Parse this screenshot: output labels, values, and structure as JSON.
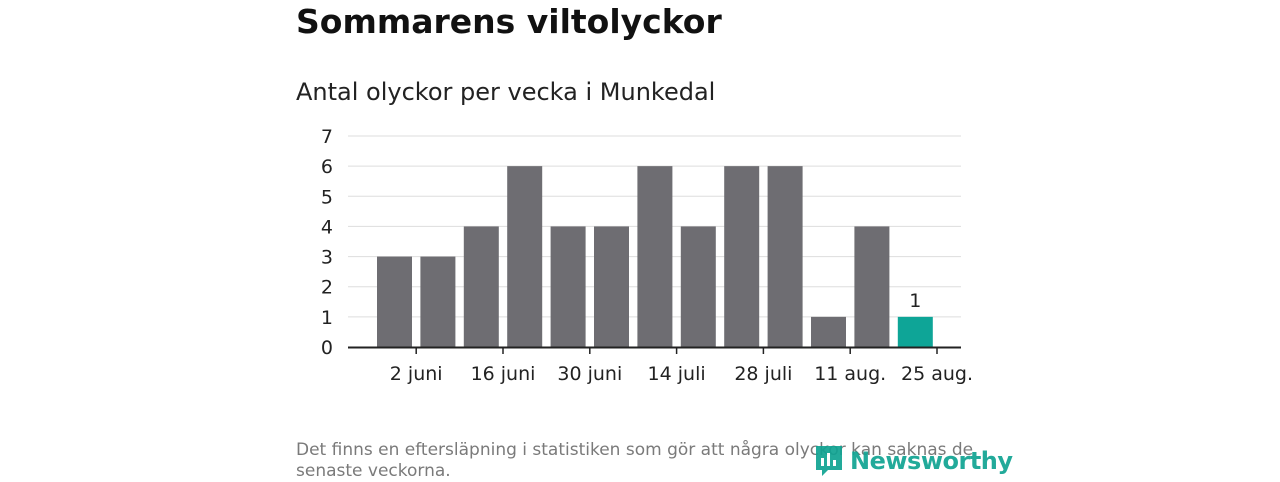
{
  "title": "Sommarens viltolyckor",
  "subtitle": "Antal olyckor per vecka i Munkedal",
  "footnote": "Det finns en eftersläpning i statistiken som gör att några olyckor kan saknas de senaste veckorna.",
  "logo": {
    "text": "Newsworthy",
    "icon": "newsworthy-logo-icon"
  },
  "colors": {
    "bar": "#6e6d72",
    "highlight": "#0ea597",
    "grid": "#dddddd",
    "axis": "#222222",
    "logo": "#10a392"
  },
  "chart_data": {
    "type": "bar",
    "values": [
      3,
      3,
      4,
      6,
      4,
      4,
      6,
      4,
      6,
      6,
      1,
      4,
      1
    ],
    "x_tick_labels": [
      "2 juni",
      "16 juni",
      "30 juni",
      "14 juli",
      "28 juli",
      "11 aug.",
      "25 aug."
    ],
    "x_tick_bar_index": [
      0.5,
      2.5,
      4.5,
      6.5,
      8.5,
      10.5,
      12.5
    ],
    "ylim": [
      0,
      7
    ],
    "y_ticks": [
      0,
      1,
      2,
      3,
      4,
      5,
      6,
      7
    ],
    "grid": true,
    "highlight_index": 12,
    "data_labels": [
      {
        "index": 12,
        "text": "1"
      }
    ]
  }
}
